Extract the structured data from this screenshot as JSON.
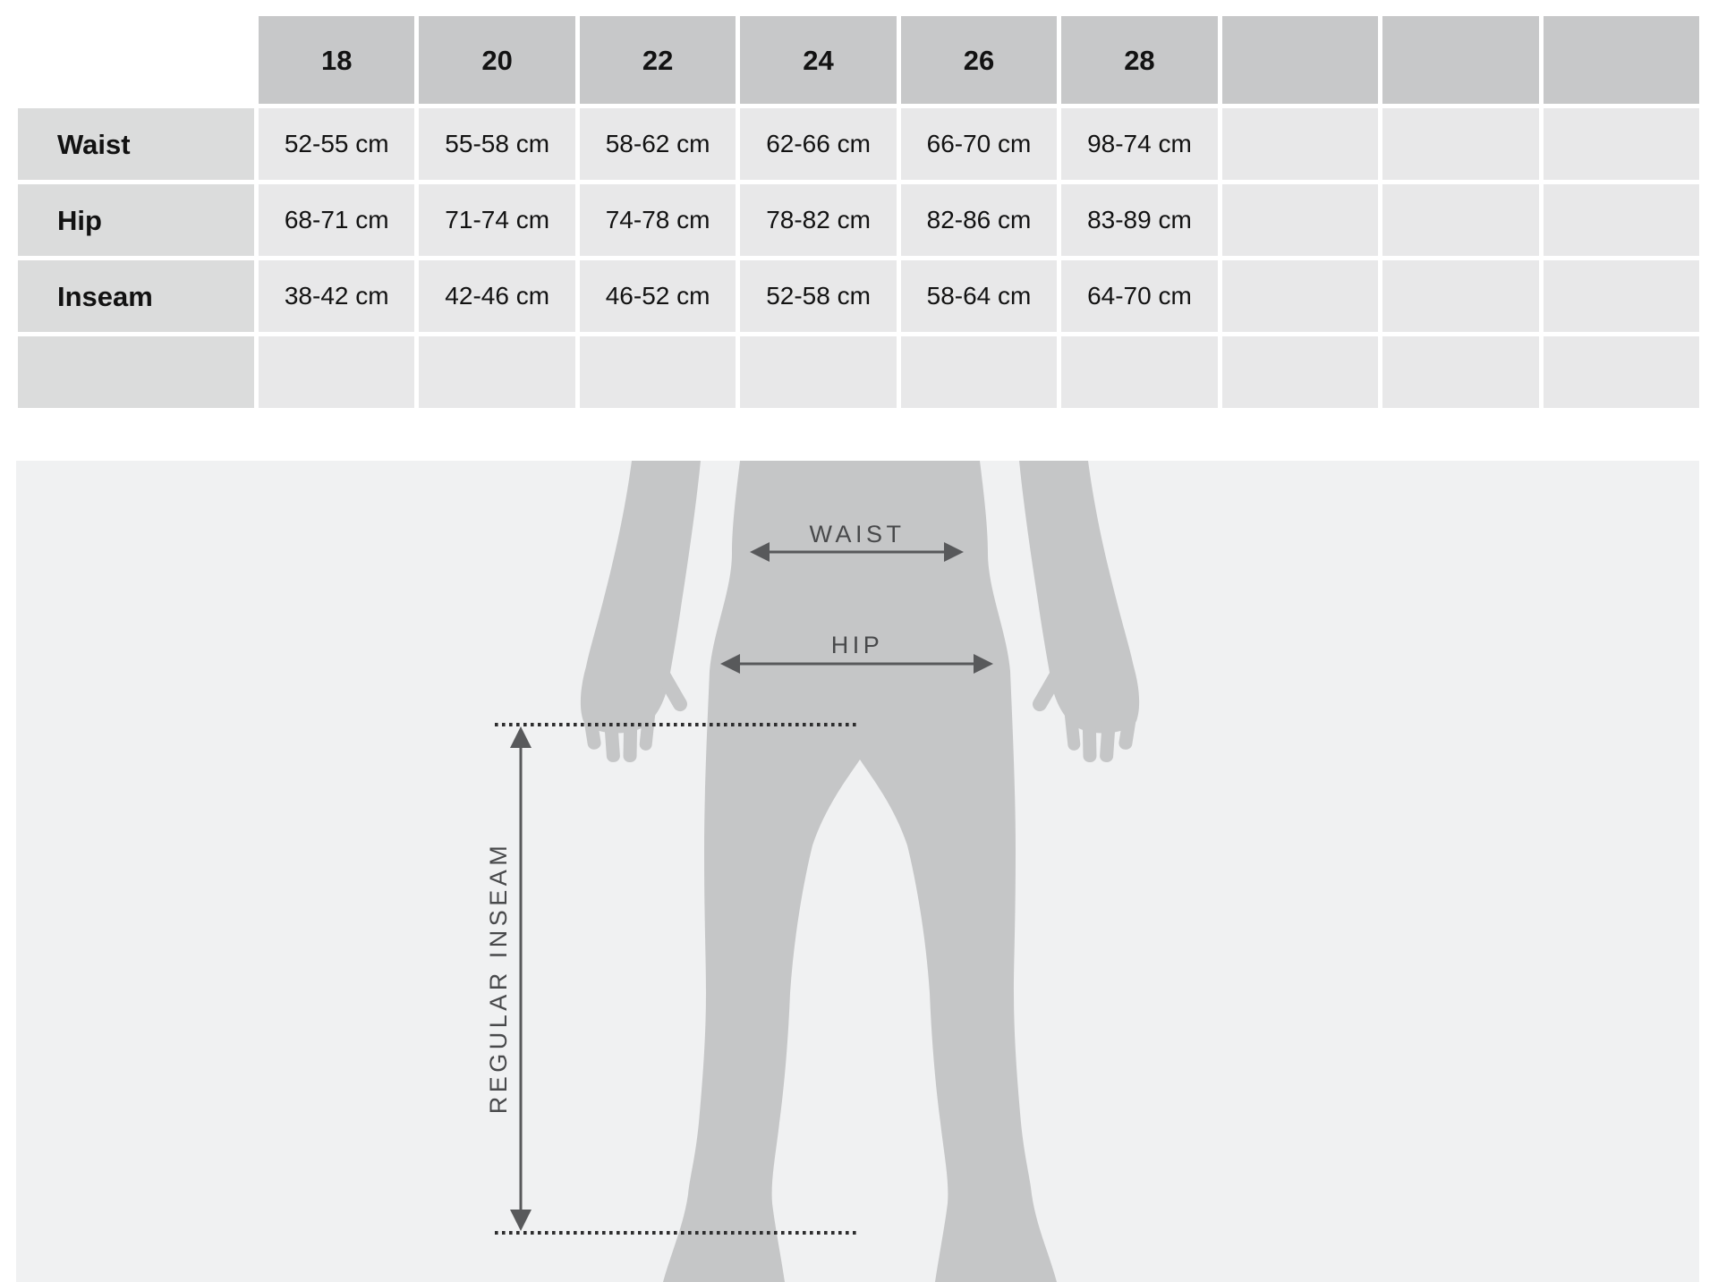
{
  "table": {
    "columns": [
      "",
      "18",
      "20",
      "22",
      "24",
      "26",
      "28",
      "",
      "",
      ""
    ],
    "rows": [
      {
        "label": "Waist",
        "values": [
          "52-55 cm",
          "55-58 cm",
          "58-62 cm",
          "62-66 cm",
          "66-70 cm",
          "98-74 cm",
          "",
          "",
          ""
        ]
      },
      {
        "label": "Hip",
        "values": [
          "68-71 cm",
          "71-74 cm",
          "74-78 cm",
          "78-82 cm",
          "82-86 cm",
          "83-89 cm",
          "",
          "",
          ""
        ]
      },
      {
        "label": "Inseam",
        "values": [
          "38-42 cm",
          "42-46 cm",
          "46-52 cm",
          "52-58 cm",
          "58-64 cm",
          "64-70 cm",
          "",
          "",
          ""
        ]
      },
      {
        "label": "",
        "values": [
          "",
          "",
          "",
          "",
          "",
          "",
          "",
          "",
          ""
        ]
      }
    ]
  },
  "diagram": {
    "waist_label": "WAIST",
    "hip_label": "HIP",
    "inseam_label": "REGULAR INSEAM"
  },
  "colors": {
    "header_cell": "#c7c8c9",
    "label_cell": "#dbdcdc",
    "data_cell": "#e8e8e9",
    "panel_bg": "#f0f1f2",
    "silhouette": "#c5c6c7",
    "arrow": "#58595b",
    "diagram_text": "#48494b",
    "dotted_line": "#2d2d2e",
    "table_text": "#121212"
  }
}
